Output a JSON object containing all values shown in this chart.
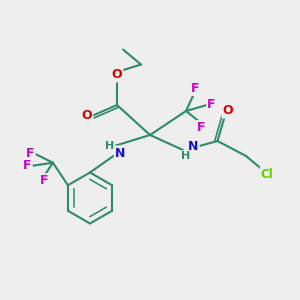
{
  "background_color": "#eeeeee",
  "bond_color": "#2d8a6a",
  "bond_width": 1.5,
  "atom_colors": {
    "O": "#dd0000",
    "N": "#1111cc",
    "F": "#cc00cc",
    "Cl": "#66cc00",
    "H": "#2d8a6a",
    "C": "#2d8a6a"
  },
  "font_size": 9
}
